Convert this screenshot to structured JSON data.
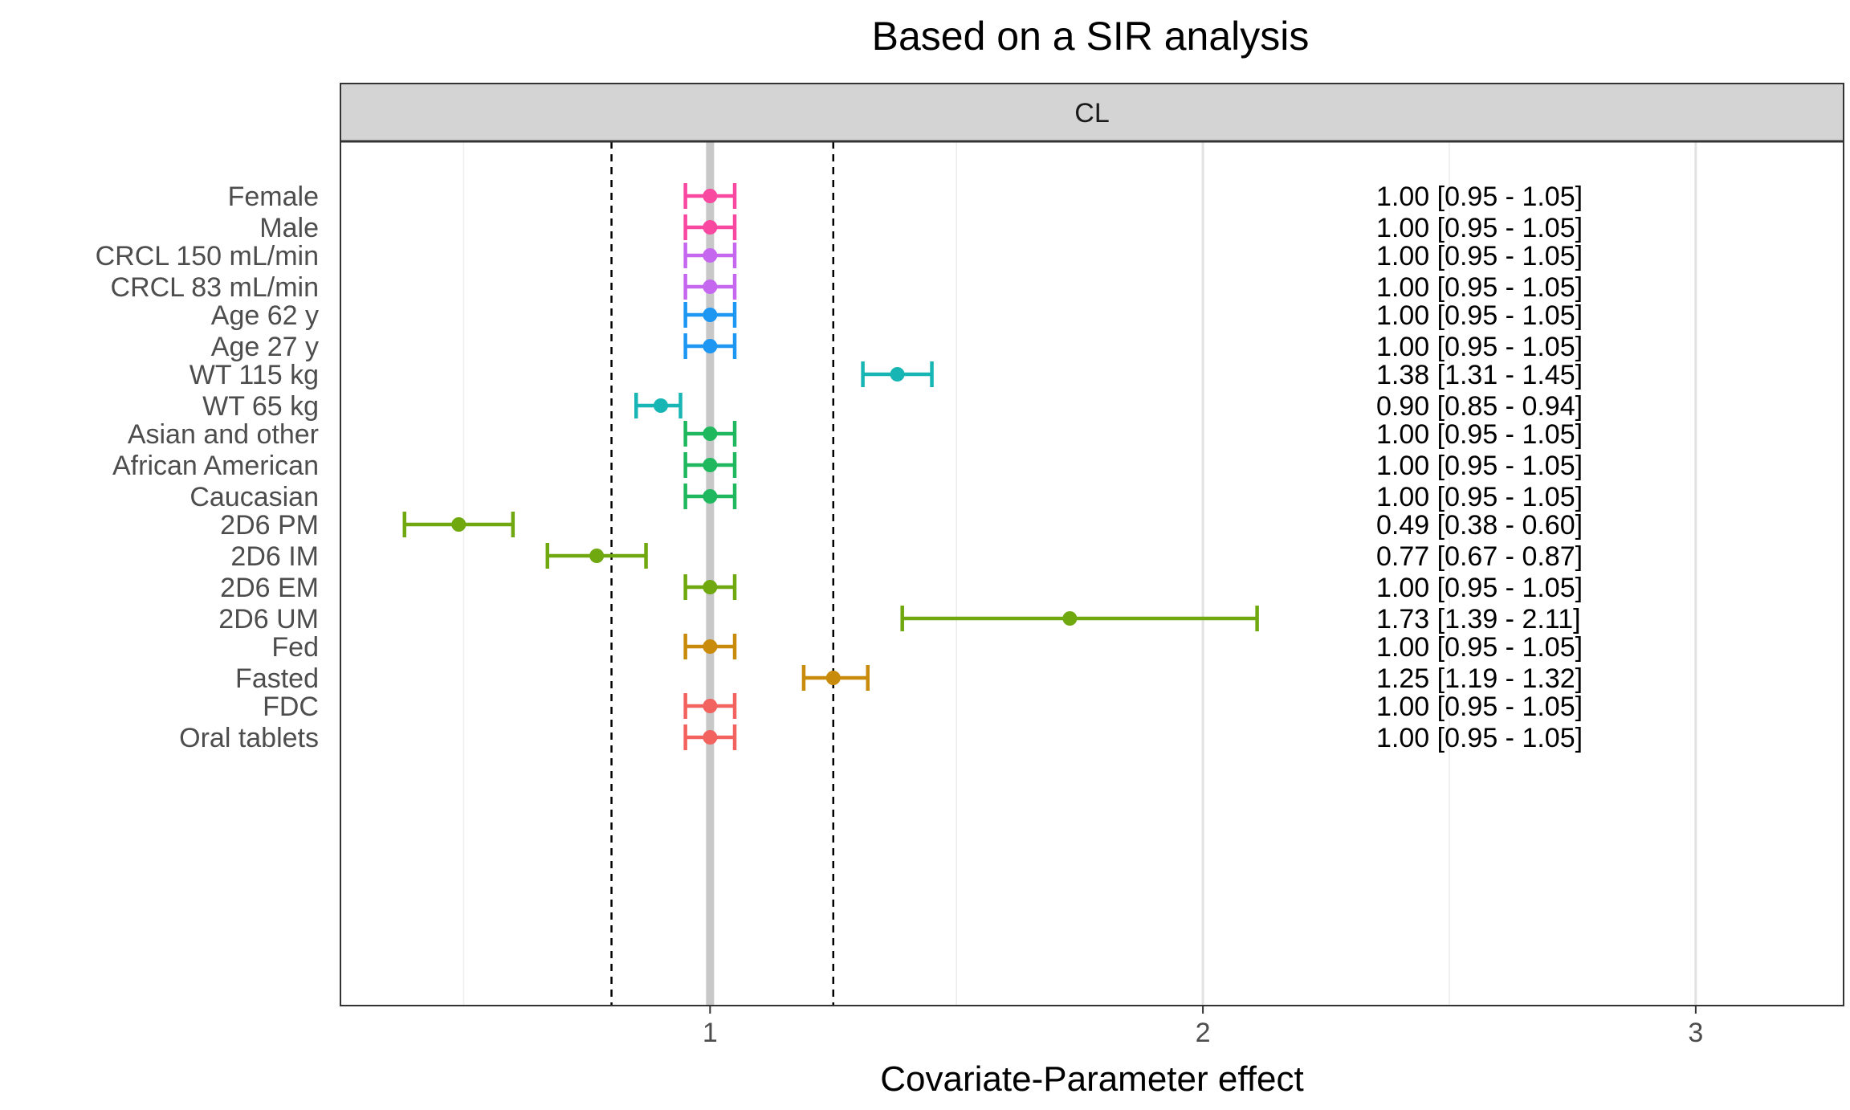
{
  "chart_data": {
    "type": "scatter",
    "title": "Based on a SIR analysis",
    "facet_label": "CL",
    "xlabel": "Covariate-Parameter effect",
    "ylabel": "",
    "x_ticks": [
      1,
      2,
      3
    ],
    "x_minor_gridlines": [
      0.5,
      1.5,
      2.5
    ],
    "xlim": [
      0.25,
      3.3
    ],
    "reference_line": 1.0,
    "dashed_lines": [
      0.8,
      1.25
    ],
    "grid": true,
    "groups": [
      {
        "color": "#f8489f",
        "rows": [
          {
            "label": "Female",
            "estimate": 1.0,
            "lower": 0.95,
            "upper": 1.05,
            "value_text": "1.00 [0.95 - 1.05]"
          },
          {
            "label": "Male",
            "estimate": 1.0,
            "lower": 0.95,
            "upper": 1.05,
            "value_text": "1.00 [0.95 - 1.05]"
          }
        ]
      },
      {
        "color": "#c667f0",
        "rows": [
          {
            "label": "CRCL 150 mL/min",
            "estimate": 1.0,
            "lower": 0.95,
            "upper": 1.05,
            "value_text": "1.00 [0.95 - 1.05]"
          },
          {
            "label": "CRCL 83 mL/min",
            "estimate": 1.0,
            "lower": 0.95,
            "upper": 1.05,
            "value_text": "1.00 [0.95 - 1.05]"
          }
        ]
      },
      {
        "color": "#1e97f3",
        "rows": [
          {
            "label": "Age 62 y",
            "estimate": 1.0,
            "lower": 0.95,
            "upper": 1.05,
            "value_text": "1.00 [0.95 - 1.05]"
          },
          {
            "label": "Age 27 y",
            "estimate": 1.0,
            "lower": 0.95,
            "upper": 1.05,
            "value_text": "1.00 [0.95 - 1.05]"
          }
        ]
      },
      {
        "color": "#17b6b5",
        "rows": [
          {
            "label": "WT 115 kg",
            "estimate": 1.38,
            "lower": 1.31,
            "upper": 1.45,
            "value_text": "1.38 [1.31 - 1.45]"
          },
          {
            "label": "WT 65 kg",
            "estimate": 0.9,
            "lower": 0.85,
            "upper": 0.94,
            "value_text": "0.90 [0.85 - 0.94]"
          }
        ]
      },
      {
        "color": "#1fb85e",
        "rows": [
          {
            "label": "Asian and other",
            "estimate": 1.0,
            "lower": 0.95,
            "upper": 1.05,
            "value_text": "1.00 [0.95 - 1.05]"
          },
          {
            "label": "African American",
            "estimate": 1.0,
            "lower": 0.95,
            "upper": 1.05,
            "value_text": "1.00 [0.95 - 1.05]"
          },
          {
            "label": "Caucasian",
            "estimate": 1.0,
            "lower": 0.95,
            "upper": 1.05,
            "value_text": "1.00 [0.95 - 1.05]"
          }
        ]
      },
      {
        "color": "#6fa80f",
        "rows": [
          {
            "label": "2D6 PM",
            "estimate": 0.49,
            "lower": 0.38,
            "upper": 0.6,
            "value_text": "0.49 [0.38 - 0.60]"
          },
          {
            "label": "2D6 IM",
            "estimate": 0.77,
            "lower": 0.67,
            "upper": 0.87,
            "value_text": "0.77 [0.67 - 0.87]"
          },
          {
            "label": "2D6 EM",
            "estimate": 1.0,
            "lower": 0.95,
            "upper": 1.05,
            "value_text": "1.00 [0.95 - 1.05]"
          },
          {
            "label": "2D6 UM",
            "estimate": 1.73,
            "lower": 1.39,
            "upper": 2.11,
            "value_text": "1.73 [1.39 - 2.11]"
          }
        ]
      },
      {
        "color": "#c98b0c",
        "rows": [
          {
            "label": "Fed",
            "estimate": 1.0,
            "lower": 0.95,
            "upper": 1.05,
            "value_text": "1.00 [0.95 - 1.05]"
          },
          {
            "label": "Fasted",
            "estimate": 1.25,
            "lower": 1.19,
            "upper": 1.32,
            "value_text": "1.25 [1.19 - 1.32]"
          }
        ]
      },
      {
        "color": "#f2625f",
        "rows": [
          {
            "label": "FDC",
            "estimate": 1.0,
            "lower": 0.95,
            "upper": 1.05,
            "value_text": "1.00 [0.95 - 1.05]"
          },
          {
            "label": "Oral tablets",
            "estimate": 1.0,
            "lower": 0.95,
            "upper": 1.05,
            "value_text": "1.00 [0.95 - 1.05]"
          }
        ]
      }
    ]
  }
}
